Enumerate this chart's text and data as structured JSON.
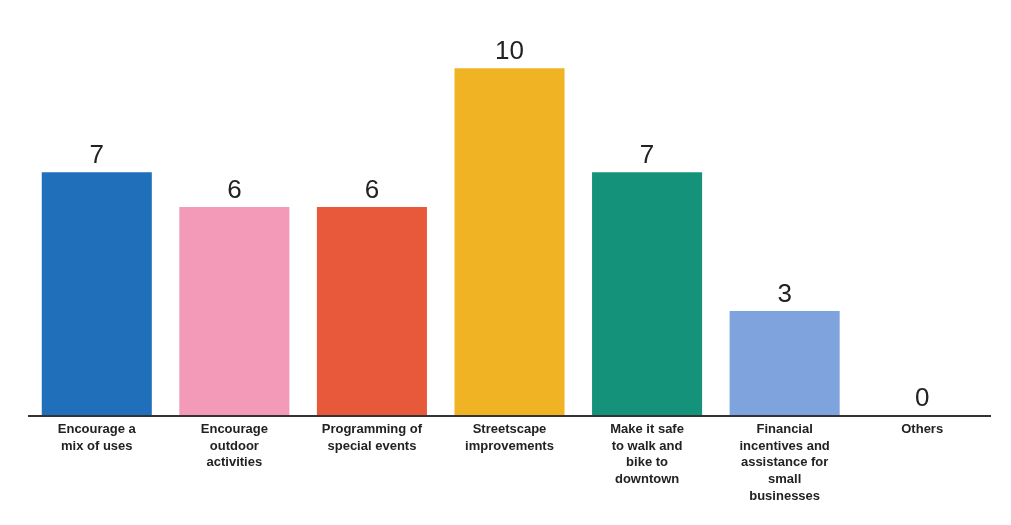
{
  "chart_data": {
    "type": "bar",
    "categories": [
      "Encourage a mix of uses",
      "Encourage outdoor activities",
      "Programming of special events",
      "Streetscape improvements",
      "Make it safe to walk and bike to downtown",
      "Financial incentives and assistance for small businesses",
      "Others"
    ],
    "values": [
      7,
      6,
      6,
      10,
      7,
      3,
      0
    ],
    "colors": [
      "#1f6fba",
      "#f29ab8",
      "#e8583a",
      "#f0b323",
      "#14937a",
      "#7fa3dc",
      "#7fa3dc"
    ],
    "data_labels": true
  }
}
